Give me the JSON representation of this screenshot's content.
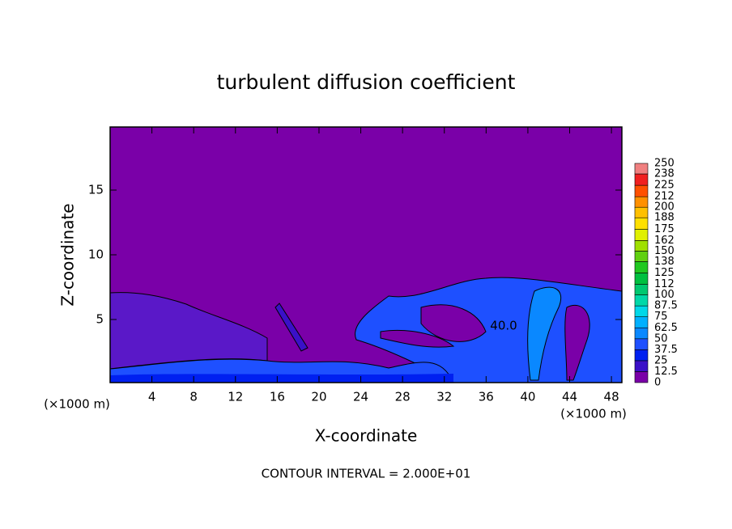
{
  "chart_data": {
    "type": "contour",
    "title": "turbulent diffusion coefficient",
    "x_label": "X-coordinate",
    "y_label": "Z-coordinate",
    "x_unit_label": "(×1000 m)",
    "y_unit_label": "(×1000 m)",
    "annotation": "40.0",
    "footer": "CONTOUR INTERVAL = 2.000E+01",
    "xlim": [
      0,
      49
    ],
    "xticks": [
      4,
      8,
      12,
      16,
      20,
      24,
      28,
      32,
      36,
      40,
      44,
      48
    ],
    "ylim": [
      0.125,
      19.875
    ],
    "yticks": [
      5,
      10,
      15
    ],
    "colorbar": {
      "levels": [
        0,
        12.5,
        25,
        37.5,
        50,
        62.5,
        75,
        87.5,
        100,
        112,
        125,
        138,
        150,
        162,
        175,
        188,
        200,
        212,
        225,
        238,
        250
      ],
      "colors": [
        "#7a00a8",
        "#3a10c8",
        "#0020f0",
        "#1e50ff",
        "#0a88ff",
        "#00b0ff",
        "#00d8e8",
        "#00d8a8",
        "#00c870",
        "#00c040",
        "#20c820",
        "#60d010",
        "#a0e000",
        "#e0f000",
        "#ffe000",
        "#ffc000",
        "#ff9000",
        "#ff5000",
        "#f02020",
        "#f08080"
      ]
    }
  }
}
